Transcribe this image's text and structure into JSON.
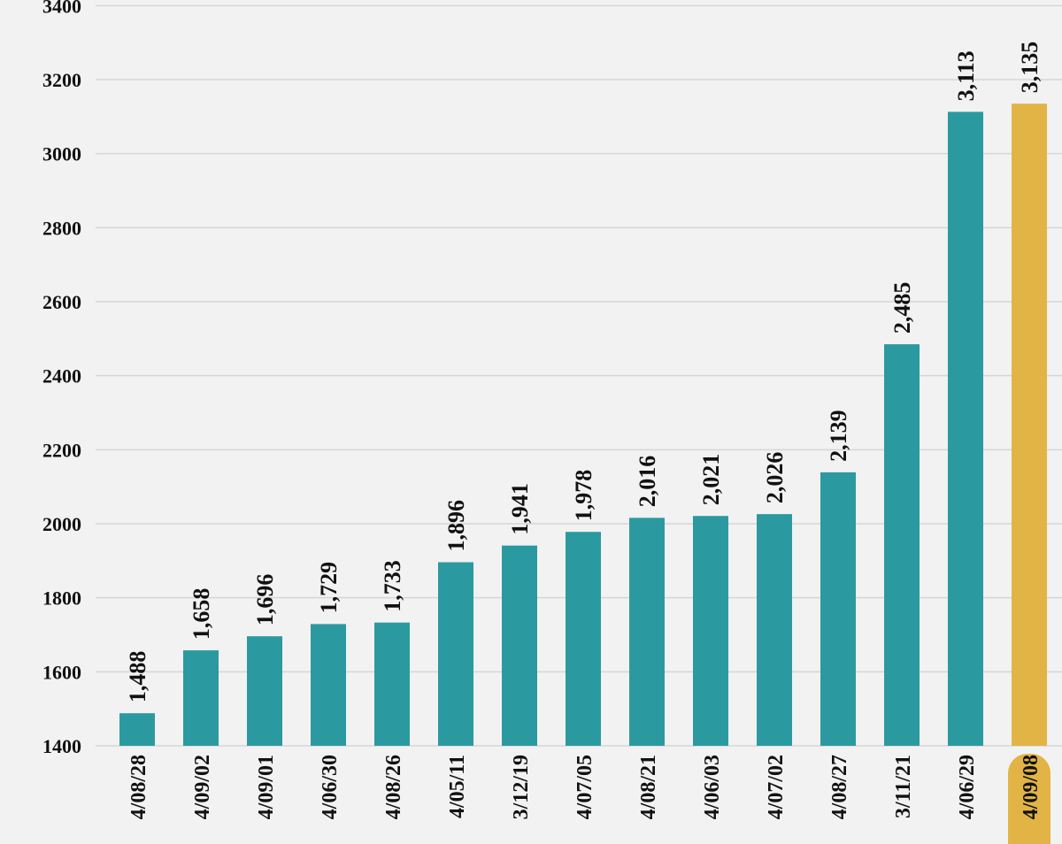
{
  "chart_data": {
    "type": "bar",
    "title": "",
    "xlabel": "",
    "ylabel": "",
    "ylim": [
      1400,
      3400
    ],
    "yticks": [
      1400,
      1600,
      1800,
      2000,
      2200,
      2400,
      2600,
      2800,
      3000,
      3200,
      3400
    ],
    "grid": true,
    "categories": [
      "4/08/28",
      "4/09/02",
      "4/09/01",
      "4/06/30",
      "4/08/26",
      "4/05/11",
      "3/12/19",
      "4/07/05",
      "4/08/21",
      "4/06/03",
      "4/07/02",
      "4/08/27",
      "3/11/21",
      "4/06/29",
      "4/09/08"
    ],
    "values": [
      1488,
      1658,
      1696,
      1729,
      1733,
      1896,
      1941,
      1978,
      2016,
      2021,
      2026,
      2139,
      2485,
      3113,
      3135
    ],
    "value_labels": [
      "1,488",
      "1,658",
      "1,696",
      "1,729",
      "1,733",
      "1,896",
      "1,941",
      "1,978",
      "2,016",
      "2,021",
      "2,026",
      "2,139",
      "2,485",
      "3,113",
      "3,135"
    ],
    "highlight_index": 14,
    "colors": {
      "bar": "#2b9aa0",
      "highlight": "#e2b445",
      "grid": "#d6d6d6",
      "text": "#111111",
      "background": "#f2f2f2"
    }
  }
}
